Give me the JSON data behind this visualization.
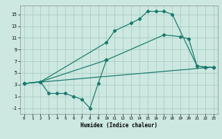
{
  "xlabel": "Humidex (Indice chaleur)",
  "xlim": [
    -0.5,
    23.5
  ],
  "ylim": [
    -2,
    16.5
  ],
  "xticks": [
    0,
    1,
    2,
    3,
    4,
    5,
    6,
    7,
    8,
    9,
    10,
    11,
    12,
    13,
    14,
    15,
    16,
    17,
    18,
    19,
    20,
    21,
    22,
    23
  ],
  "yticks": [
    -1,
    1,
    3,
    5,
    7,
    9,
    11,
    13,
    15
  ],
  "bg_color": "#cce8e0",
  "grid_color": "#aaccc4",
  "line_color": "#1a7a6e",
  "line1_x": [
    0,
    2,
    10,
    11,
    13,
    14,
    15,
    16,
    17,
    18,
    21,
    22,
    23
  ],
  "line1_y": [
    3.2,
    3.5,
    10.2,
    12.2,
    13.5,
    14.2,
    15.5,
    15.5,
    15.5,
    15.0,
    6.2,
    6.0,
    6.0
  ],
  "line2_x": [
    0,
    2,
    10,
    17,
    19,
    20,
    21,
    22,
    23
  ],
  "line2_y": [
    3.2,
    3.5,
    7.2,
    11.5,
    11.2,
    10.8,
    6.2,
    6.0,
    6.0
  ],
  "line3_x": [
    0,
    2,
    3,
    4,
    5,
    6,
    7,
    8,
    9,
    10
  ],
  "line3_y": [
    3.2,
    3.5,
    1.5,
    1.5,
    1.5,
    1.0,
    0.5,
    -1.0,
    3.2,
    7.2
  ],
  "line4_x": [
    0,
    23
  ],
  "line4_y": [
    3.2,
    6.0
  ]
}
